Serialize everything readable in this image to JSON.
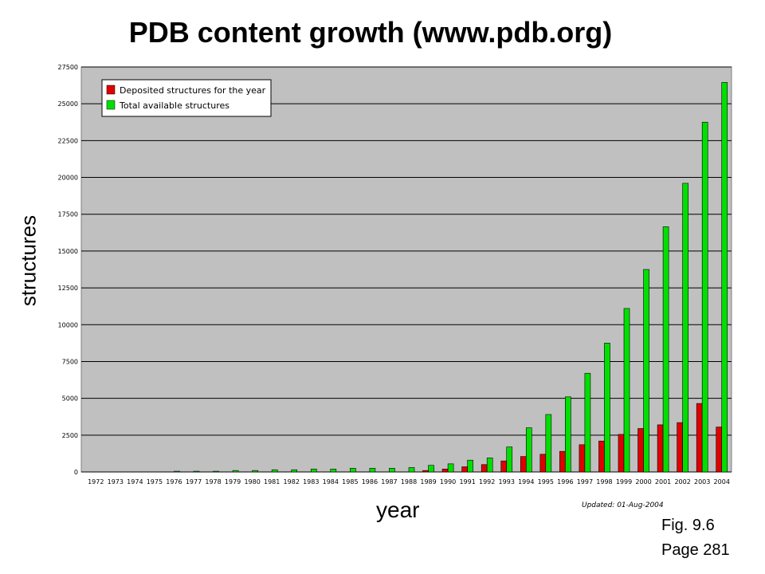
{
  "slide": {
    "title": "PDB content growth (www.pdb.org)",
    "ylabel": "structures",
    "xlabel": "year",
    "fig_label": "Fig. 9.6",
    "page_label": "Page 281"
  },
  "chart_data": {
    "type": "bar",
    "categories": [
      "1972",
      "1973",
      "1974",
      "1975",
      "1976",
      "1977",
      "1978",
      "1979",
      "1980",
      "1981",
      "1982",
      "1983",
      "1984",
      "1985",
      "1986",
      "1987",
      "1988",
      "1989",
      "1990",
      "1991",
      "1992",
      "1993",
      "1994",
      "1995",
      "1996",
      "1997",
      "1998",
      "1999",
      "2000",
      "2001",
      "2002",
      "2003",
      "2004"
    ],
    "series": [
      {
        "name": "Deposited structures for the year",
        "color": "#e00000",
        "values": [
          0,
          0,
          0,
          0,
          0,
          0,
          0,
          0,
          0,
          0,
          0,
          0,
          0,
          0,
          0,
          0,
          0,
          100,
          200,
          350,
          500,
          750,
          1050,
          1200,
          1400,
          1850,
          2100,
          2550,
          2950,
          3200,
          3350,
          4650,
          3050
        ]
      },
      {
        "name": "Total available structures",
        "color": "#00e000",
        "values": [
          0,
          0,
          0,
          0,
          50,
          50,
          50,
          100,
          100,
          150,
          150,
          200,
          200,
          250,
          250,
          250,
          300,
          450,
          550,
          800,
          950,
          1700,
          3000,
          3900,
          5100,
          6700,
          8750,
          11100,
          13750,
          16650,
          19600,
          23750,
          26450
        ]
      }
    ],
    "yticks": [
      "0",
      "2500",
      "5000",
      "7500",
      "10000",
      "12500",
      "15000",
      "17500",
      "20000",
      "22500",
      "25000",
      "27500"
    ],
    "ylim": [
      0,
      27500
    ],
    "grid": true,
    "legend_position": "top-left",
    "annotation": "Updated: 01-Aug-2004",
    "plot_background": "#c0c0c0"
  }
}
